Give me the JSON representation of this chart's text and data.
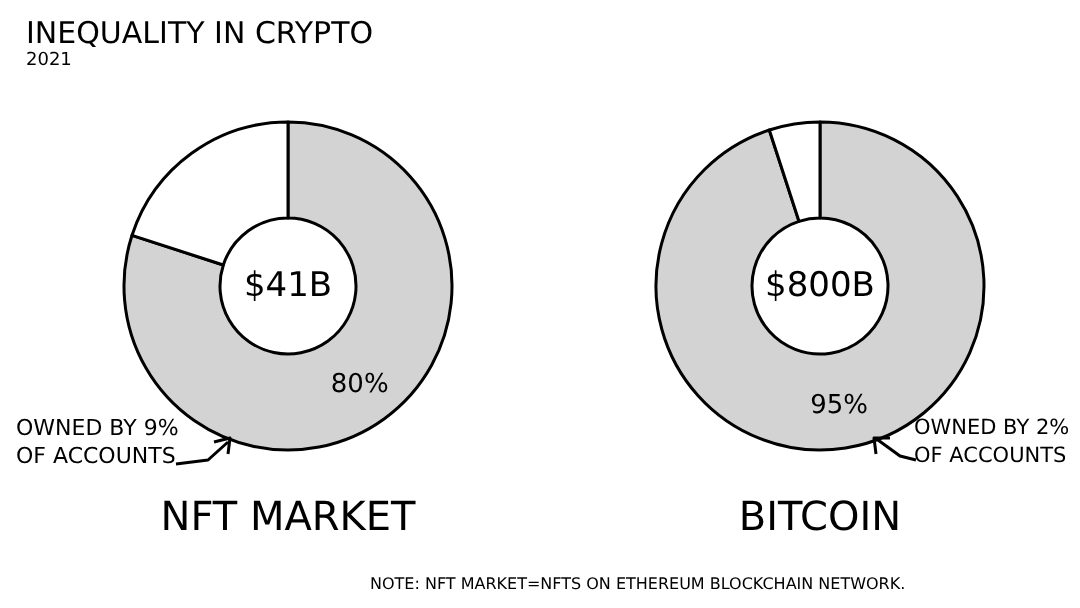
{
  "chart_data": [
    {
      "type": "donut",
      "title": "INEQUALITY IN CRYPTO",
      "subtitle": "2021",
      "xlabel": "NFT MARKET",
      "categories": [
        null,
        null
      ],
      "values": [
        80,
        20
      ],
      "colors": [
        "#d3d3d3",
        "#ffffff"
      ],
      "value_labels": [
        "80%",
        null
      ],
      "annotations": [
        "$41B",
        "OWNED BY 9% OF ACCOUNTS"
      ]
    },
    {
      "type": "donut",
      "xlabel": "BITCOIN",
      "categories": [
        null,
        null
      ],
      "values": [
        95,
        5
      ],
      "colors": [
        "#d3d3d3",
        "#ffffff"
      ],
      "value_labels": [
        "95%",
        null
      ],
      "annotations": [
        "$800B",
        "OWNED BY 2% OF ACCOUNTS",
        "NOTE: NFT MARKET=NFTS ON ETHEREUM BLOCKCHAIN NETWORK."
      ]
    }
  ]
}
